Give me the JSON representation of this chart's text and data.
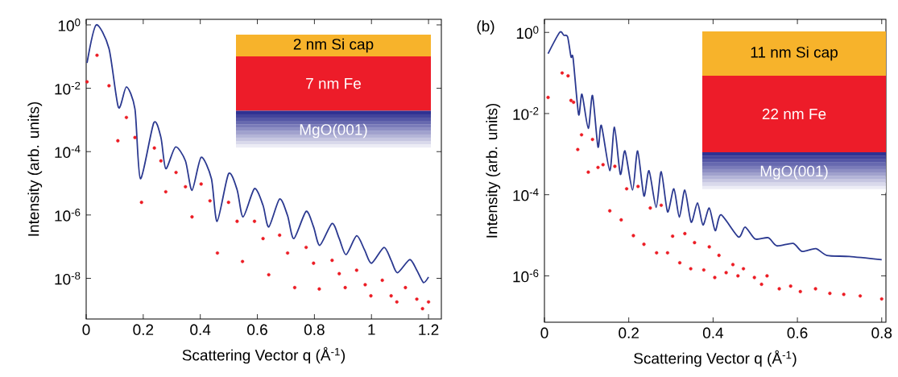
{
  "chart_data": [
    {
      "type": "line",
      "log": "y",
      "xlabel": "Scattering Vector q (Å$^{-1}$)",
      "ylabel": "Intensity (arb. units)",
      "xlim": [
        0,
        1.245
      ],
      "ylim": [
        5.2e-10,
        1.5
      ],
      "xticks": [
        0,
        0.2,
        0.4,
        0.6,
        0.8,
        1,
        1.2
      ],
      "yticks": [
        {
          "value": 1,
          "label": "10$^{0}$"
        },
        {
          "value": 0.01,
          "label": "10$^{-2}$"
        },
        {
          "value": 0.0001,
          "label": "10$^{-4}$"
        },
        {
          "value": 1e-06,
          "label": "10$^{-6}$"
        },
        {
          "value": 1e-08,
          "label": "10$^{-8}$"
        }
      ],
      "annotations": [
        "2 nm Si cap",
        "7 nm Fe",
        "MgO(001)"
      ],
      "series": [
        {
          "type": "line",
          "color": "#2b3990",
          "line_style": "solid",
          "x": [
            0.003,
            0.035,
            0.08,
            0.113,
            0.141,
            0.171,
            0.19,
            0.237,
            0.262,
            0.279,
            0.313,
            0.348,
            0.371,
            0.403,
            0.439,
            0.459,
            0.499,
            0.529,
            0.55,
            0.59,
            0.62,
            0.64,
            0.678,
            0.706,
            0.728,
            0.771,
            0.797,
            0.819,
            0.862,
            0.887,
            0.911,
            0.948,
            0.976,
            1.0,
            1.044,
            1.069,
            1.091,
            1.134,
            1.159,
            1.182,
            1.2
          ],
          "values": [
            0.063,
            1,
            0.18,
            0.0025,
            0.011,
            0.0022,
            1.4e-05,
            0.00081,
            0.00028,
            2.9e-05,
            0.00014,
            5.1e-05,
            6e-06,
            6.6e-05,
            1.4e-05,
            6.3e-07,
            2e-05,
            6.3e-06,
            8.7e-07,
            6.8e-06,
            2e-06,
            4.2e-07,
            3.2e-06,
            9.5e-07,
            1.8e-07,
            1.3e-06,
            4.2e-07,
            1.1e-07,
            5.4e-07,
            1.8e-07,
            5.6e-08,
            2.2e-07,
            7.8e-08,
            3e-08,
            9.5e-08,
            3.7e-08,
            1.5e-08,
            3.9e-08,
            1.8e-08,
            7.4e-09,
            1.1e-08
          ]
        },
        {
          "type": "scatter",
          "color": "#ec1c24",
          "marker": "circle",
          "x": [
            0.003,
            0.038,
            0.08,
            0.111,
            0.141,
            0.171,
            0.194,
            0.239,
            0.262,
            0.279,
            0.315,
            0.348,
            0.371,
            0.403,
            0.434,
            0.46,
            0.499,
            0.529,
            0.548,
            0.59,
            0.62,
            0.64,
            0.678,
            0.706,
            0.731,
            0.771,
            0.797,
            0.817,
            0.862,
            0.887,
            0.908,
            0.948,
            0.978,
            0.998,
            1.038,
            1.069,
            1.089,
            1.119,
            1.159,
            1.179,
            1.2
          ],
          "values": [
            0.016,
            0.11,
            0.012,
            0.00022,
            0.0012,
            0.00028,
            2.5e-06,
            0.00013,
            5.1e-05,
            5.4e-06,
            2.2e-05,
            7.8e-06,
            8.7e-07,
            9.5e-06,
            2.8e-06,
            6.3e-08,
            2.5e-06,
            6.3e-07,
            3.4e-08,
            6.3e-07,
            1.8e-07,
            1.3e-08,
            2.3e-07,
            6.3e-08,
            5.1e-09,
            9.5e-08,
            3e-08,
            4.6e-09,
            3.7e-08,
            1.4e-08,
            5.1e-09,
            1.8e-08,
            6.3e-09,
            2.8e-09,
            8.7e-09,
            2.8e-09,
            1.8e-09,
            5.1e-09,
            2.2e-09,
            1.1e-09,
            1.8e-09
          ]
        }
      ]
    },
    {
      "type": "line",
      "log": "y",
      "xlabel": "Scattering Vector q (Å$^{-1}$)",
      "ylabel": "Intensity (arb. units)",
      "xlim": [
        0,
        0.81
      ],
      "ylim": [
        7.2e-08,
        2.1
      ],
      "xticks": [
        0,
        0.2,
        0.4,
        0.6,
        0.8
      ],
      "yticks": [
        {
          "value": 1,
          "label": "10$^{0}$"
        },
        {
          "value": 0.01,
          "label": "10$^{-2}$"
        },
        {
          "value": 0.0001,
          "label": "10$^{-4}$"
        },
        {
          "value": 1e-06,
          "label": "10$^{-6}$"
        }
      ],
      "annotations": [
        "11 nm Si cap",
        "22 nm Fe",
        "MgO(001)",
        "(b)"
      ],
      "series": [
        {
          "type": "line",
          "color": "#2b3990",
          "line_style": "solid",
          "x": [
            0.0086,
            0.036,
            0.046,
            0.055,
            0.063,
            0.068,
            0.081,
            0.089,
            0.104,
            0.114,
            0.127,
            0.135,
            0.155,
            0.166,
            0.18,
            0.191,
            0.209,
            0.221,
            0.236,
            0.248,
            0.265,
            0.277,
            0.292,
            0.307,
            0.32,
            0.333,
            0.348,
            0.363,
            0.376,
            0.391,
            0.405,
            0.419,
            0.46,
            0.476,
            0.5,
            0.531,
            0.551,
            0.59,
            0.611,
            0.644,
            0.67,
            0.723,
            0.8
          ],
          "values": [
            0.3,
            1,
            0.85,
            0.78,
            0.25,
            0.23,
            0.0095,
            0.03,
            0.0043,
            0.028,
            0.0015,
            0.0051,
            0.00039,
            0.0046,
            0.00032,
            0.0012,
            0.00013,
            0.0012,
            9.3e-05,
            0.00039,
            4.9e-05,
            0.00037,
            3.8e-05,
            0.00014,
            2.8e-05,
            0.00013,
            2.1e-05,
            6.3e-05,
            1.8e-05,
            4.7e-05,
            1.3e-05,
            3.2e-05,
            9.1e-06,
            1.6e-05,
            8.1e-06,
            8.7e-06,
            5.5e-06,
            6.3e-06,
            4e-06,
            4.7e-06,
            3.2e-06,
            3e-06,
            2.5e-06
          ]
        },
        {
          "type": "scatter",
          "color": "#ec1c24",
          "marker": "circle",
          "x": [
            0.0086,
            0.042,
            0.056,
            0.063,
            0.069,
            0.079,
            0.088,
            0.104,
            0.114,
            0.127,
            0.139,
            0.155,
            0.167,
            0.182,
            0.195,
            0.211,
            0.222,
            0.236,
            0.251,
            0.266,
            0.277,
            0.292,
            0.304,
            0.321,
            0.333,
            0.347,
            0.356,
            0.378,
            0.391,
            0.404,
            0.414,
            0.431,
            0.447,
            0.459,
            0.472,
            0.498,
            0.515,
            0.528,
            0.557,
            0.584,
            0.607,
            0.643,
            0.677,
            0.71,
            0.749,
            0.8
          ],
          "values": [
            0.025,
            0.1,
            0.085,
            0.021,
            0.019,
            0.0013,
            0.003,
            0.00036,
            0.0023,
            0.00047,
            0.00055,
            4e-05,
            0.0005,
            2.4e-05,
            0.00014,
            9.8e-06,
            0.00016,
            6e-06,
            4.7e-05,
            3.7e-06,
            5.5e-05,
            3.7e-06,
            9.5e-06,
            2.1e-06,
            1.1e-05,
            1.5e-06,
            6.6e-06,
            1.4e-06,
            5.2e-06,
            9.1e-07,
            3.2e-06,
            1.2e-06,
            1.9e-06,
            1e-06,
            1.5e-06,
            9.1e-07,
            6.2e-07,
            1e-06,
            4.8e-07,
            5.6e-07,
            4.1e-07,
            4.8e-07,
            3.7e-07,
            3.5e-07,
            3.2e-07,
            2.7e-07
          ]
        }
      ]
    }
  ]
}
